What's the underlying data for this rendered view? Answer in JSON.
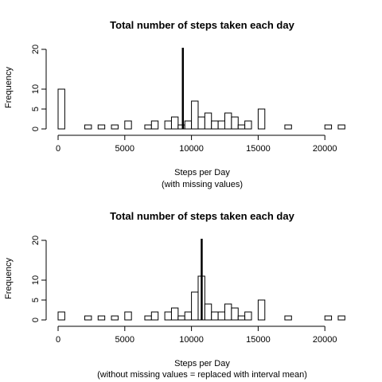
{
  "chart_data": [
    {
      "type": "bar",
      "title": "Total number of steps taken each day",
      "xlabel": "Steps per Day",
      "xlabel_sub": "(with missing values)",
      "ylabel": "Frequency",
      "bin_width": 500,
      "x_ticks": [
        "0",
        "5000",
        "10000",
        "15000",
        "20000"
      ],
      "y_ticks": [
        "0",
        "5",
        "10",
        "20"
      ],
      "xlim": [
        0,
        21500
      ],
      "ylim": [
        0,
        20
      ],
      "bins": [
        {
          "start": 0,
          "count": 10
        },
        {
          "start": 2000,
          "count": 1
        },
        {
          "start": 3000,
          "count": 1
        },
        {
          "start": 4000,
          "count": 1
        },
        {
          "start": 5000,
          "count": 2
        },
        {
          "start": 6500,
          "count": 1
        },
        {
          "start": 7000,
          "count": 2
        },
        {
          "start": 8000,
          "count": 2
        },
        {
          "start": 8500,
          "count": 3
        },
        {
          "start": 9000,
          "count": 1
        },
        {
          "start": 9500,
          "count": 2
        },
        {
          "start": 10000,
          "count": 7
        },
        {
          "start": 10500,
          "count": 3
        },
        {
          "start": 11000,
          "count": 4
        },
        {
          "start": 11500,
          "count": 2
        },
        {
          "start": 12000,
          "count": 2
        },
        {
          "start": 12500,
          "count": 4
        },
        {
          "start": 13000,
          "count": 3
        },
        {
          "start": 13500,
          "count": 1
        },
        {
          "start": 14000,
          "count": 2
        },
        {
          "start": 15000,
          "count": 5
        },
        {
          "start": 17000,
          "count": 1
        },
        {
          "start": 20000,
          "count": 1
        },
        {
          "start": 21000,
          "count": 1
        }
      ],
      "mean_line": 9354
    },
    {
      "type": "bar",
      "title": "Total number of steps taken each day",
      "xlabel": "Steps per Day",
      "xlabel_sub": "(without missing values = replaced with interval mean)",
      "ylabel": "Frequency",
      "bin_width": 500,
      "x_ticks": [
        "0",
        "5000",
        "10000",
        "15000",
        "20000"
      ],
      "y_ticks": [
        "0",
        "5",
        "10",
        "20"
      ],
      "xlim": [
        0,
        21500
      ],
      "ylim": [
        0,
        20
      ],
      "bins": [
        {
          "start": 0,
          "count": 2
        },
        {
          "start": 2000,
          "count": 1
        },
        {
          "start": 3000,
          "count": 1
        },
        {
          "start": 4000,
          "count": 1
        },
        {
          "start": 5000,
          "count": 2
        },
        {
          "start": 6500,
          "count": 1
        },
        {
          "start": 7000,
          "count": 2
        },
        {
          "start": 8000,
          "count": 2
        },
        {
          "start": 8500,
          "count": 3
        },
        {
          "start": 9000,
          "count": 1
        },
        {
          "start": 9500,
          "count": 2
        },
        {
          "start": 10000,
          "count": 7
        },
        {
          "start": 10500,
          "count": 11
        },
        {
          "start": 11000,
          "count": 4
        },
        {
          "start": 11500,
          "count": 2
        },
        {
          "start": 12000,
          "count": 2
        },
        {
          "start": 12500,
          "count": 4
        },
        {
          "start": 13000,
          "count": 3
        },
        {
          "start": 13500,
          "count": 1
        },
        {
          "start": 14000,
          "count": 2
        },
        {
          "start": 15000,
          "count": 5
        },
        {
          "start": 17000,
          "count": 1
        },
        {
          "start": 20000,
          "count": 1
        },
        {
          "start": 21000,
          "count": 1
        }
      ],
      "mean_line": 10766
    }
  ]
}
